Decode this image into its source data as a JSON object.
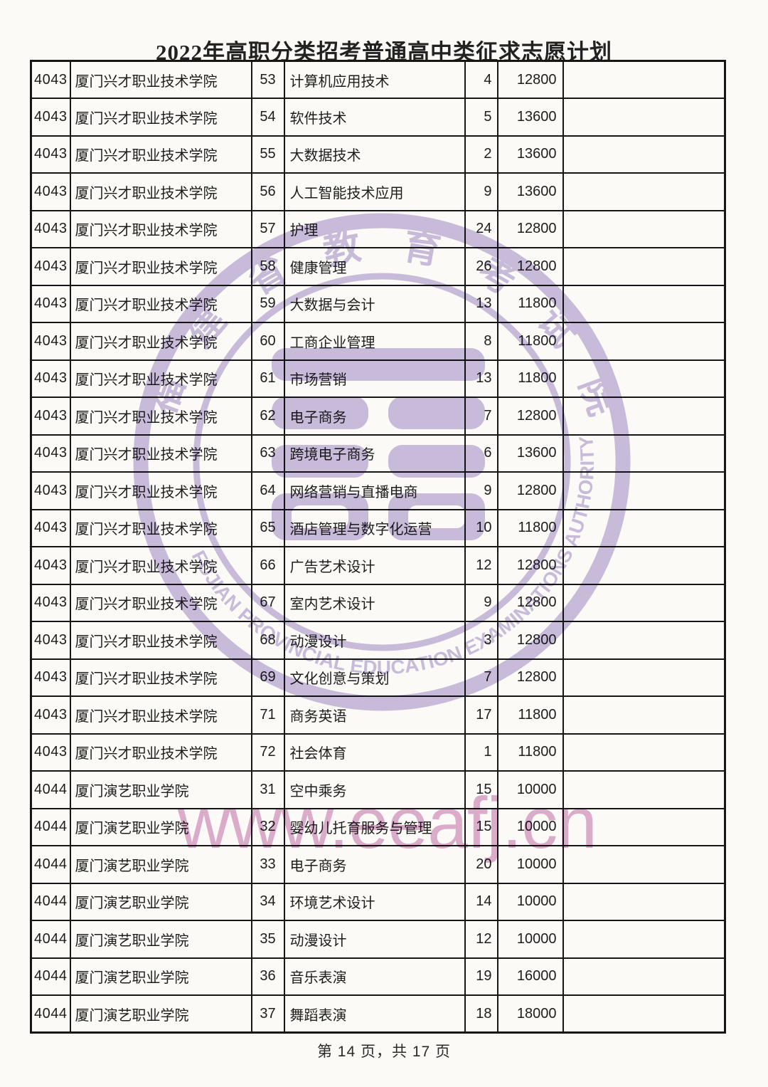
{
  "page": {
    "title": "2022年高职分类招考普通高中类征求志愿计划",
    "footer": "第 14 页，共 17 页"
  },
  "table": {
    "rows": [
      {
        "college_code": "4043",
        "college_name": "厦门兴才职业技术学院",
        "major_code": "53",
        "major_name": "计算机应用技术",
        "plan_count": "4",
        "tuition_fee": "12800",
        "remark": ""
      },
      {
        "college_code": "4043",
        "college_name": "厦门兴才职业技术学院",
        "major_code": "54",
        "major_name": "软件技术",
        "plan_count": "5",
        "tuition_fee": "13600",
        "remark": ""
      },
      {
        "college_code": "4043",
        "college_name": "厦门兴才职业技术学院",
        "major_code": "55",
        "major_name": "大数据技术",
        "plan_count": "2",
        "tuition_fee": "13600",
        "remark": ""
      },
      {
        "college_code": "4043",
        "college_name": "厦门兴才职业技术学院",
        "major_code": "56",
        "major_name": "人工智能技术应用",
        "plan_count": "9",
        "tuition_fee": "13600",
        "remark": ""
      },
      {
        "college_code": "4043",
        "college_name": "厦门兴才职业技术学院",
        "major_code": "57",
        "major_name": "护理",
        "plan_count": "24",
        "tuition_fee": "12800",
        "remark": ""
      },
      {
        "college_code": "4043",
        "college_name": "厦门兴才职业技术学院",
        "major_code": "58",
        "major_name": "健康管理",
        "plan_count": "26",
        "tuition_fee": "12800",
        "remark": ""
      },
      {
        "college_code": "4043",
        "college_name": "厦门兴才职业技术学院",
        "major_code": "59",
        "major_name": "大数据与会计",
        "plan_count": "13",
        "tuition_fee": "11800",
        "remark": ""
      },
      {
        "college_code": "4043",
        "college_name": "厦门兴才职业技术学院",
        "major_code": "60",
        "major_name": "工商企业管理",
        "plan_count": "8",
        "tuition_fee": "11800",
        "remark": ""
      },
      {
        "college_code": "4043",
        "college_name": "厦门兴才职业技术学院",
        "major_code": "61",
        "major_name": "市场营销",
        "plan_count": "13",
        "tuition_fee": "11800",
        "remark": ""
      },
      {
        "college_code": "4043",
        "college_name": "厦门兴才职业技术学院",
        "major_code": "62",
        "major_name": "电子商务",
        "plan_count": "7",
        "tuition_fee": "12800",
        "remark": ""
      },
      {
        "college_code": "4043",
        "college_name": "厦门兴才职业技术学院",
        "major_code": "63",
        "major_name": "跨境电子商务",
        "plan_count": "6",
        "tuition_fee": "13600",
        "remark": ""
      },
      {
        "college_code": "4043",
        "college_name": "厦门兴才职业技术学院",
        "major_code": "64",
        "major_name": "网络营销与直播电商",
        "plan_count": "9",
        "tuition_fee": "12800",
        "remark": ""
      },
      {
        "college_code": "4043",
        "college_name": "厦门兴才职业技术学院",
        "major_code": "65",
        "major_name": "酒店管理与数字化运营",
        "plan_count": "10",
        "tuition_fee": "11800",
        "remark": ""
      },
      {
        "college_code": "4043",
        "college_name": "厦门兴才职业技术学院",
        "major_code": "66",
        "major_name": "广告艺术设计",
        "plan_count": "12",
        "tuition_fee": "12800",
        "remark": ""
      },
      {
        "college_code": "4043",
        "college_name": "厦门兴才职业技术学院",
        "major_code": "67",
        "major_name": "室内艺术设计",
        "plan_count": "9",
        "tuition_fee": "12800",
        "remark": ""
      },
      {
        "college_code": "4043",
        "college_name": "厦门兴才职业技术学院",
        "major_code": "68",
        "major_name": "动漫设计",
        "plan_count": "3",
        "tuition_fee": "12800",
        "remark": ""
      },
      {
        "college_code": "4043",
        "college_name": "厦门兴才职业技术学院",
        "major_code": "69",
        "major_name": "文化创意与策划",
        "plan_count": "7",
        "tuition_fee": "12800",
        "remark": ""
      },
      {
        "college_code": "4043",
        "college_name": "厦门兴才职业技术学院",
        "major_code": "71",
        "major_name": "商务英语",
        "plan_count": "17",
        "tuition_fee": "11800",
        "remark": ""
      },
      {
        "college_code": "4043",
        "college_name": "厦门兴才职业技术学院",
        "major_code": "72",
        "major_name": "社会体育",
        "plan_count": "1",
        "tuition_fee": "11800",
        "remark": ""
      },
      {
        "college_code": "4044",
        "college_name": "厦门演艺职业学院",
        "major_code": "31",
        "major_name": "空中乘务",
        "plan_count": "15",
        "tuition_fee": "10000",
        "remark": ""
      },
      {
        "college_code": "4044",
        "college_name": "厦门演艺职业学院",
        "major_code": "32",
        "major_name": "婴幼儿托育服务与管理",
        "plan_count": "15",
        "tuition_fee": "10000",
        "remark": ""
      },
      {
        "college_code": "4044",
        "college_name": "厦门演艺职业学院",
        "major_code": "33",
        "major_name": "电子商务",
        "plan_count": "20",
        "tuition_fee": "10000",
        "remark": ""
      },
      {
        "college_code": "4044",
        "college_name": "厦门演艺职业学院",
        "major_code": "34",
        "major_name": "环境艺术设计",
        "plan_count": "14",
        "tuition_fee": "10000",
        "remark": ""
      },
      {
        "college_code": "4044",
        "college_name": "厦门演艺职业学院",
        "major_code": "35",
        "major_name": "动漫设计",
        "plan_count": "12",
        "tuition_fee": "10000",
        "remark": ""
      },
      {
        "college_code": "4044",
        "college_name": "厦门演艺职业学院",
        "major_code": "36",
        "major_name": "音乐表演",
        "plan_count": "19",
        "tuition_fee": "16000",
        "remark": ""
      },
      {
        "college_code": "4044",
        "college_name": "厦门演艺职业学院",
        "major_code": "37",
        "major_name": "舞蹈表演",
        "plan_count": "18",
        "tuition_fee": "18000",
        "remark": ""
      }
    ]
  },
  "watermarks": {
    "url_text": "www.eeafj.cn",
    "url_color": "#d9a2c8",
    "seal": {
      "cn_text": "福建省教育考试院",
      "en_text": "FUJIAN PROVINCIAL EDUCATION EXAMINATIONS AUTHORITY",
      "color": "#c8bbdf"
    }
  }
}
